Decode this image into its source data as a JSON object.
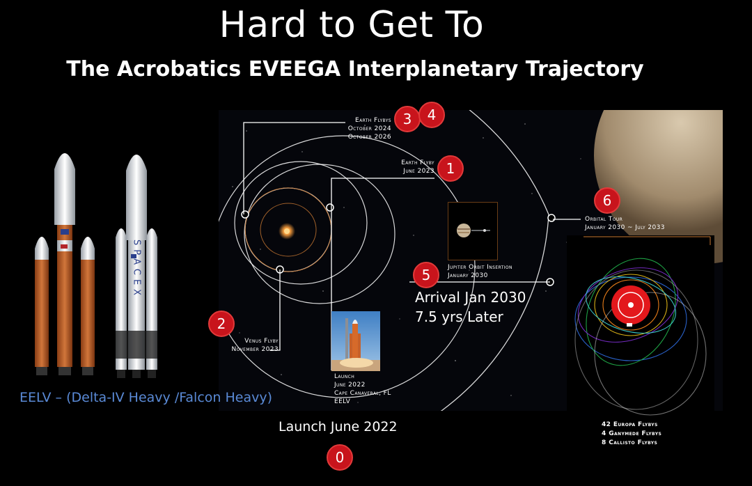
{
  "header": {
    "title": "Hard to Get To",
    "subtitle": "The Acrobatics EVEEGA Interplanetary Trajectory"
  },
  "events": {
    "earth_flybys_34": {
      "title": "Earth Flybys",
      "line1": "October 2024",
      "line2": "October 2026"
    },
    "earth_flyby_1": {
      "title": "Earth Flyby",
      "line1": "June 2023"
    },
    "orbital_tour": {
      "title": "Orbital Tour",
      "line1": "January 2030 ~ July 2033"
    },
    "joi": {
      "title": "Jupiter Orbit Insertion",
      "line1": "January 2030"
    },
    "venus_flyby": {
      "title": "Venus Flyby",
      "line1": "November 2023"
    },
    "launch": {
      "title": "Launch",
      "line1": "June 2022",
      "line2": "Cape Canaveral, FL",
      "line3": "EELV"
    }
  },
  "badges": {
    "b0": "0",
    "b1": "1",
    "b2": "2",
    "b3": "3",
    "b4": "4",
    "b5": "5",
    "b6": "6"
  },
  "arrival": {
    "line1": "Arrival Jan 2030",
    "line2": "7.5 yrs Later"
  },
  "launch_vehicle": "EELV – (Delta-IV Heavy /Falcon Heavy)",
  "launch_date": "Launch June 2022",
  "rocket_lettering": "SPACEX",
  "flyby_counts": [
    "42 Europa Flybys",
    "4 Ganymede Flybys",
    "8 Callisto Flybys"
  ],
  "colors": {
    "badge": "#c8141c",
    "eelv_text": "#5a8ad6",
    "sun": "#f39a3c",
    "earth_orbit": "#c87832"
  }
}
